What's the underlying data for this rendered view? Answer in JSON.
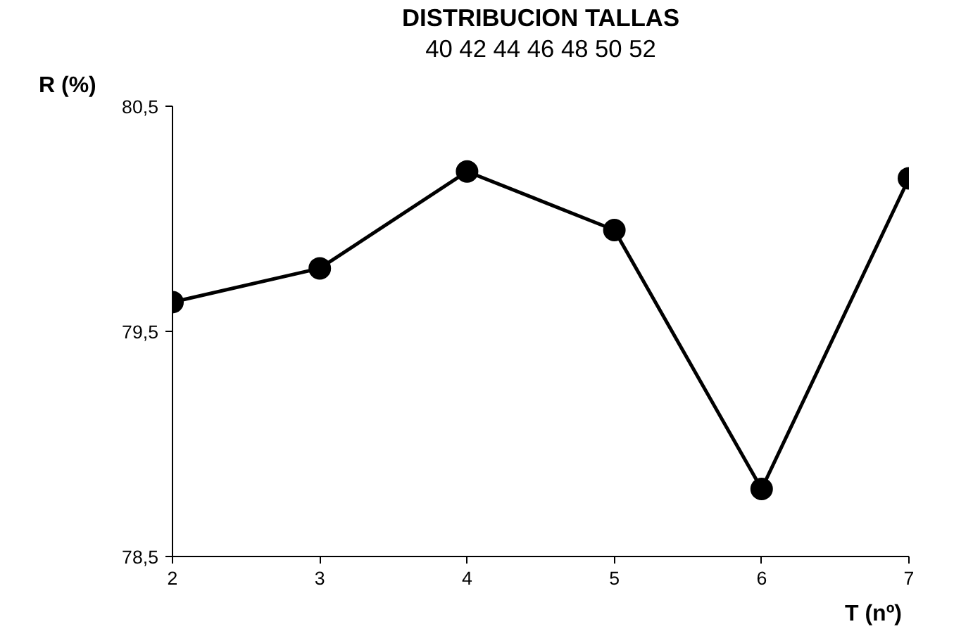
{
  "chart_data": {
    "type": "line",
    "title": "DISTRIBUCION TALLAS",
    "subtitle": "40 42 44 46 48 50 52",
    "xlabel": "T (nº)",
    "ylabel": "R (%)",
    "x": [
      2,
      3,
      4,
      5,
      6,
      7
    ],
    "series": [
      {
        "color": "#000000",
        "values": [
          79.63,
          79.78,
          80.21,
          79.95,
          78.8,
          80.18
        ]
      }
    ],
    "xlim": [
      2,
      7
    ],
    "xticks": [
      2,
      3,
      4,
      5,
      6,
      7
    ],
    "ylim": [
      78.5,
      80.5
    ],
    "yticks": [
      {
        "value": 78.5,
        "label": "78,5"
      },
      {
        "value": 79.5,
        "label": "79,5"
      },
      {
        "value": 80.5,
        "label": "80,5"
      }
    ],
    "grid": false,
    "marker": "circle",
    "line_style": "solid"
  }
}
